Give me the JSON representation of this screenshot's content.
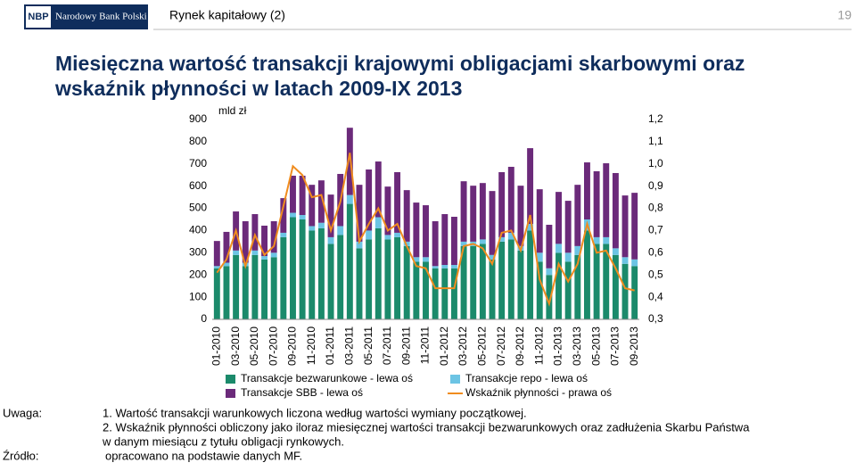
{
  "header": {
    "logo": "NBP",
    "bank": "Narodowy Bank Polski",
    "section": "Rynek kapitałowy (2)",
    "page": 19
  },
  "chart_data": {
    "type": "bar",
    "stacked": true,
    "title": [
      "Miesięczna wartość transakcji krajowymi obligacjami skarbowymi oraz",
      "wskaźnik płynności w latach 2009-IX 2013"
    ],
    "y_label": "mld zł",
    "categories": [
      "01-2010",
      null,
      "03-2010",
      null,
      "05-2010",
      null,
      "07-2010",
      null,
      "09-2010",
      null,
      "11-2010",
      null,
      "01-2011",
      null,
      "03-2011",
      null,
      "05-2011",
      null,
      "07-2011",
      null,
      "09-2011",
      null,
      "11-2011",
      null,
      "01-2012",
      null,
      "03-2012",
      null,
      "05-2012",
      null,
      "07-2012",
      null,
      "09-2012",
      null,
      "11-2012",
      null,
      "01-2013",
      null,
      "03-2013",
      null,
      "05-2013",
      null,
      "07-2013",
      null,
      "09-2013"
    ],
    "series": [
      {
        "name": "Transakcje bezwarunkowe - lewa oś",
        "type": "bar",
        "color": "#1b8a6b",
        "values": [
          230,
          240,
          290,
          240,
          290,
          270,
          280,
          370,
          460,
          450,
          400,
          410,
          340,
          380,
          520,
          320,
          360,
          410,
          360,
          370,
          330,
          260,
          260,
          230,
          230,
          230,
          330,
          330,
          340,
          270,
          350,
          360,
          310,
          400,
          260,
          200,
          300,
          260,
          290,
          400,
          340,
          340,
          290,
          250,
          240
        ]
      },
      {
        "name": "Transakcje repo - lewa oś",
        "type": "bar",
        "color": "#6cc4e4",
        "values": [
          10,
          15,
          20,
          15,
          20,
          15,
          20,
          20,
          20,
          20,
          20,
          25,
          30,
          40,
          40,
          30,
          40,
          50,
          20,
          20,
          20,
          20,
          20,
          10,
          15,
          15,
          20,
          20,
          20,
          20,
          20,
          30,
          20,
          30,
          40,
          30,
          40,
          40,
          40,
          50,
          30,
          30,
          30,
          30,
          30
        ]
      },
      {
        "name": "Transakcje SBB - lewa oś",
        "type": "bar",
        "color": "#6b2a7a",
        "values": [
          113,
          139,
          176,
          187,
          164,
          137,
          142,
          156,
          167,
          177,
          186,
          191,
          192,
          235,
          303,
          256,
          275,
          251,
          218,
          273,
          232,
          246,
          234,
          202,
          229,
          217,
          272,
          252,
          254,
          288,
          293,
          297,
          272,
          341,
          286,
          196,
          234,
          234,
          276,
          257,
          297,
          333,
          339,
          278,
          300
        ]
      },
      {
        "name": "Wskaźnik płynności - prawa oś",
        "type": "line",
        "axis": "y2",
        "color": "#f08c1e",
        "values": [
          0.51,
          0.57,
          0.7,
          0.54,
          0.68,
          0.59,
          0.63,
          0.81,
          0.99,
          0.95,
          0.85,
          0.86,
          0.7,
          0.83,
          1.05,
          0.65,
          0.73,
          0.8,
          0.7,
          0.73,
          0.63,
          0.54,
          0.53,
          0.44,
          0.44,
          0.44,
          0.63,
          0.64,
          0.62,
          0.55,
          0.69,
          0.7,
          0.61,
          0.77,
          0.48,
          0.37,
          0.55,
          0.47,
          0.55,
          0.73,
          0.6,
          0.61,
          0.53,
          0.44,
          0.43
        ]
      }
    ],
    "ylim": [
      0,
      900
    ],
    "yticks": [
      0,
      100,
      200,
      300,
      400,
      500,
      600,
      700,
      800,
      900
    ],
    "y2lim": [
      0.3,
      1.2
    ],
    "y2ticks": [
      {
        "value": 0.3,
        "label": "0,3"
      },
      {
        "value": 0.4,
        "label": "0,4"
      },
      {
        "value": 0.5,
        "label": "0,5"
      },
      {
        "value": 0.6,
        "label": "0,6"
      },
      {
        "value": 0.7,
        "label": "0,7"
      },
      {
        "value": 0.8,
        "label": "0,8"
      },
      {
        "value": 0.9,
        "label": "0,9"
      },
      {
        "value": 1.0,
        "label": "1,0"
      },
      {
        "value": 1.1,
        "label": "1,1"
      },
      {
        "value": 1.2,
        "label": "1,2"
      }
    ],
    "grid": false,
    "legend": "bottom"
  },
  "notes": {
    "label": "Uwaga:",
    "items": [
      "1. Wartość transakcji warunkowych liczona według wartości wymiany początkowej.",
      "2. Wskaźnik płynności obliczony jako iloraz miesięcznej wartości transakcji bezwarunkowych oraz zadłużenia Skarbu Państwa",
      "w danym miesiącu z tytułu obligacji rynkowych."
    ]
  },
  "source": {
    "label": "Źródło:",
    "text": "opracowano na podstawie danych MF."
  }
}
